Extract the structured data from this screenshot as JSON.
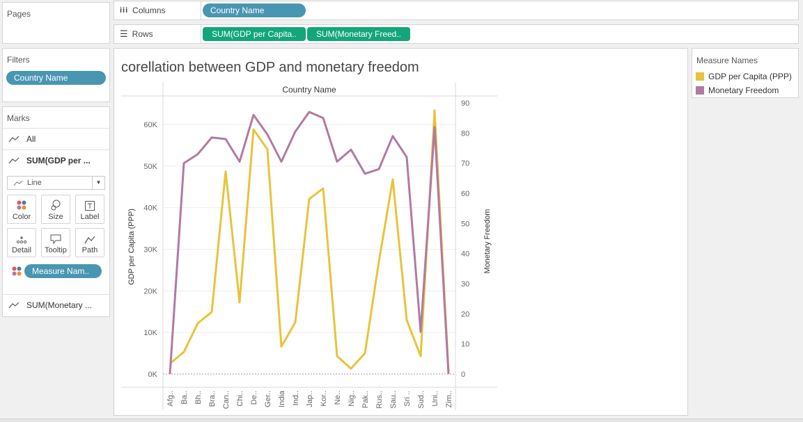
{
  "pages": {
    "title": "Pages"
  },
  "shelves": {
    "columns": {
      "label": "Columns",
      "pills": [
        "Country Name"
      ]
    },
    "rows": {
      "label": "Rows",
      "pills": [
        "SUM(GDP per Capita..",
        "SUM(Monetary Freed.."
      ]
    }
  },
  "filters": {
    "title": "Filters",
    "pills": [
      "Country Name"
    ]
  },
  "marks": {
    "title": "Marks",
    "cards": [
      "All",
      "SUM(GDP per ...",
      "SUM(Monetary ..."
    ],
    "type_select": "Line",
    "buttons": {
      "color": "Color",
      "size": "Size",
      "label": "Label",
      "detail": "Detail",
      "tooltip": "Tooltip",
      "path": "Path"
    },
    "color_pill": "Measure Nam.."
  },
  "legend": {
    "title": "Measure Names",
    "items": [
      {
        "label": "GDP per Capita (PPP)",
        "color": "#e8c33b"
      },
      {
        "label": "Monetary Freedom",
        "color": "#b07aa1"
      }
    ]
  },
  "chart_data": {
    "type": "line",
    "title": "corellation between GDP and monetary freedom",
    "xlabel": "Country Name",
    "categories": [
      "Afg..",
      "Ba..",
      "Bh..",
      "Bra..",
      "Can..",
      "Chi..",
      "De..",
      "Ger..",
      "India",
      "Ind..",
      "Jap..",
      "Kor..",
      "Ne..",
      "Nig..",
      "Pak..",
      "Rus..",
      "Sau..",
      "Sri ..",
      "Sud..",
      "Uni..",
      "Zim.."
    ],
    "left_axis": {
      "label": "GDP per Capita (PPP)",
      "range": [
        0,
        65000
      ],
      "ticks": [
        0,
        10000,
        20000,
        30000,
        40000,
        50000,
        60000
      ],
      "tick_labels": [
        "0K",
        "10K",
        "20K",
        "30K",
        "40K",
        "50K",
        "60K"
      ]
    },
    "right_axis": {
      "label": "Monetary Freedom",
      "range": [
        0,
        90
      ],
      "ticks": [
        0,
        10,
        20,
        30,
        40,
        50,
        60,
        70,
        80,
        90
      ]
    },
    "series": [
      {
        "name": "GDP per Capita (PPP)",
        "axis": "left",
        "color": "#e8c33b",
        "values": [
          2500,
          5300,
          12200,
          14900,
          48700,
          17200,
          58800,
          54000,
          6600,
          12400,
          42100,
          44600,
          4300,
          1300,
          5000,
          27000,
          46800,
          13000,
          4300,
          63400,
          600
        ]
      },
      {
        "name": "Monetary Freedom",
        "axis": "right",
        "color": "#b07aa1",
        "values": [
          0,
          70,
          73,
          78.5,
          78,
          70.5,
          86,
          79.5,
          70.5,
          80.5,
          87,
          85,
          70.5,
          74.5,
          66.5,
          68,
          79,
          72,
          14,
          82,
          0
        ]
      }
    ],
    "grid": true
  }
}
